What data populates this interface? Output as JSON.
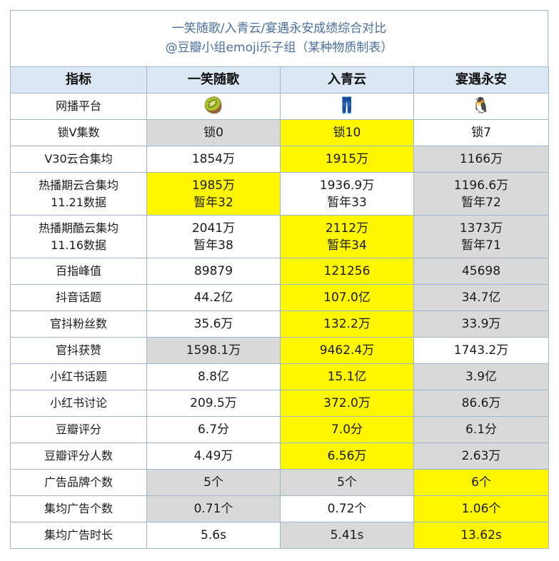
{
  "title": {
    "line1": "一笑随歌/入青云/宴遇永安成绩综合对比",
    "line2": "@豆瓣小组emoji乐子组（某种物质制表）"
  },
  "header": [
    "指标",
    "一笑随歌",
    "入青云",
    "宴遇永安"
  ],
  "platform_row": {
    "label": "网播平台",
    "icons": [
      "kiwi-icon",
      "jeans-icon",
      "penguin-icon"
    ],
    "glyphs": [
      "🥝",
      "👖",
      "🐧"
    ]
  },
  "rows": [
    {
      "label": [
        "锁V集数"
      ],
      "cells": [
        [
          "锁0"
        ],
        [
          "锁10"
        ],
        [
          "锁7"
        ]
      ],
      "bg": [
        "g",
        "y",
        "w"
      ]
    },
    {
      "label": [
        "V30云合集均"
      ],
      "cells": [
        [
          "1854万"
        ],
        [
          "1915万"
        ],
        [
          "1166万"
        ]
      ],
      "bg": [
        "w",
        "y",
        "g"
      ]
    },
    {
      "label": [
        "热播期云合集均",
        "11.21数据"
      ],
      "cells": [
        [
          "1985万",
          "暂年32"
        ],
        [
          "1936.9万",
          "暂年33"
        ],
        [
          "1196.6万",
          "暂年72"
        ]
      ],
      "bg": [
        "y",
        "w",
        "g"
      ]
    },
    {
      "label": [
        "热播期酷云集均",
        "11.16数据"
      ],
      "cells": [
        [
          "2041万",
          "暂年38"
        ],
        [
          "2112万",
          "暂年34"
        ],
        [
          "1373万",
          "暂年71"
        ]
      ],
      "bg": [
        "w",
        "y",
        "g"
      ]
    },
    {
      "label": [
        "百指峰值"
      ],
      "cells": [
        [
          "89879"
        ],
        [
          "121256"
        ],
        [
          "45698"
        ]
      ],
      "bg": [
        "w",
        "y",
        "g"
      ]
    },
    {
      "label": [
        "抖音话题"
      ],
      "cells": [
        [
          "44.2亿"
        ],
        [
          "107.0亿"
        ],
        [
          "34.7亿"
        ]
      ],
      "bg": [
        "w",
        "y",
        "g"
      ]
    },
    {
      "label": [
        "官抖粉丝数"
      ],
      "cells": [
        [
          "35.6万"
        ],
        [
          "132.2万"
        ],
        [
          "33.9万"
        ]
      ],
      "bg": [
        "w",
        "y",
        "g"
      ]
    },
    {
      "label": [
        "官抖获赞"
      ],
      "cells": [
        [
          "1598.1万"
        ],
        [
          "9462.4万"
        ],
        [
          "1743.2万"
        ]
      ],
      "bg": [
        "g",
        "y",
        "w"
      ]
    },
    {
      "label": [
        "小红书话题"
      ],
      "cells": [
        [
          "8.8亿"
        ],
        [
          "15.1亿"
        ],
        [
          "3.9亿"
        ]
      ],
      "bg": [
        "w",
        "y",
        "g"
      ]
    },
    {
      "label": [
        "小红书讨论"
      ],
      "cells": [
        [
          "209.5万"
        ],
        [
          "372.0万"
        ],
        [
          "86.6万"
        ]
      ],
      "bg": [
        "w",
        "y",
        "g"
      ]
    },
    {
      "label": [
        "豆瓣评分"
      ],
      "cells": [
        [
          "6.7分"
        ],
        [
          "7.0分"
        ],
        [
          "6.1分"
        ]
      ],
      "bg": [
        "w",
        "y",
        "g"
      ]
    },
    {
      "label": [
        "豆瓣评分人数"
      ],
      "cells": [
        [
          "4.49万"
        ],
        [
          "6.56万"
        ],
        [
          "2.63万"
        ]
      ],
      "bg": [
        "w",
        "y",
        "g"
      ]
    },
    {
      "label": [
        "广告品牌个数"
      ],
      "cells": [
        [
          "5个"
        ],
        [
          "5个"
        ],
        [
          "6个"
        ]
      ],
      "bg": [
        "g",
        "g",
        "y"
      ]
    },
    {
      "label": [
        "集均广告个数"
      ],
      "cells": [
        [
          "0.71个"
        ],
        [
          "0.72个"
        ],
        [
          "1.06个"
        ]
      ],
      "bg": [
        "g",
        "w",
        "y"
      ]
    },
    {
      "label": [
        "集均广告时长"
      ],
      "cells": [
        [
          "5.6s"
        ],
        [
          "5.41s"
        ],
        [
          "13.62s"
        ]
      ],
      "bg": [
        "w",
        "g",
        "y"
      ]
    }
  ],
  "watermark": "",
  "colors": {
    "highlight": "#fff600",
    "muted": "#d9d9d9",
    "header_bg": "#dbe7f3",
    "title": "#4a6f9c",
    "border": "#9fb6cf"
  }
}
